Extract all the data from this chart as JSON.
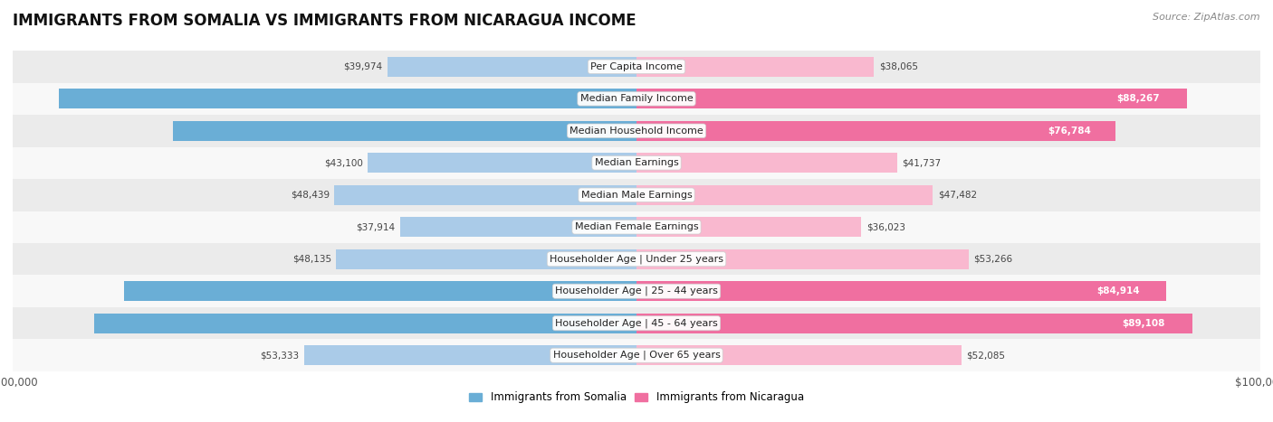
{
  "title": "IMMIGRANTS FROM SOMALIA VS IMMIGRANTS FROM NICARAGUA INCOME",
  "source": "Source: ZipAtlas.com",
  "categories": [
    "Per Capita Income",
    "Median Family Income",
    "Median Household Income",
    "Median Earnings",
    "Median Male Earnings",
    "Median Female Earnings",
    "Householder Age | Under 25 years",
    "Householder Age | 25 - 44 years",
    "Householder Age | 45 - 64 years",
    "Householder Age | Over 65 years"
  ],
  "somalia_values": [
    39974,
    92609,
    74300,
    43100,
    48439,
    37914,
    48135,
    82188,
    86987,
    53333
  ],
  "nicaragua_values": [
    38065,
    88267,
    76784,
    41737,
    47482,
    36023,
    53266,
    84914,
    89108,
    52085
  ],
  "somalia_color_light": "#aacbe8",
  "somalia_color_dark": "#6aaed6",
  "nicaragua_color_light": "#f9b8cf",
  "nicaragua_color_dark": "#f06fa0",
  "row_bg_odd": "#ebebeb",
  "row_bg_even": "#f8f8f8",
  "max_value": 100000,
  "bar_height": 0.62,
  "threshold": 0.58,
  "legend_somalia": "Immigrants from Somalia",
  "legend_nicaragua": "Immigrants from Nicaragua",
  "title_fontsize": 12,
  "label_fontsize": 8.5,
  "source_fontsize": 8,
  "value_fontsize": 7.5,
  "category_fontsize": 8
}
